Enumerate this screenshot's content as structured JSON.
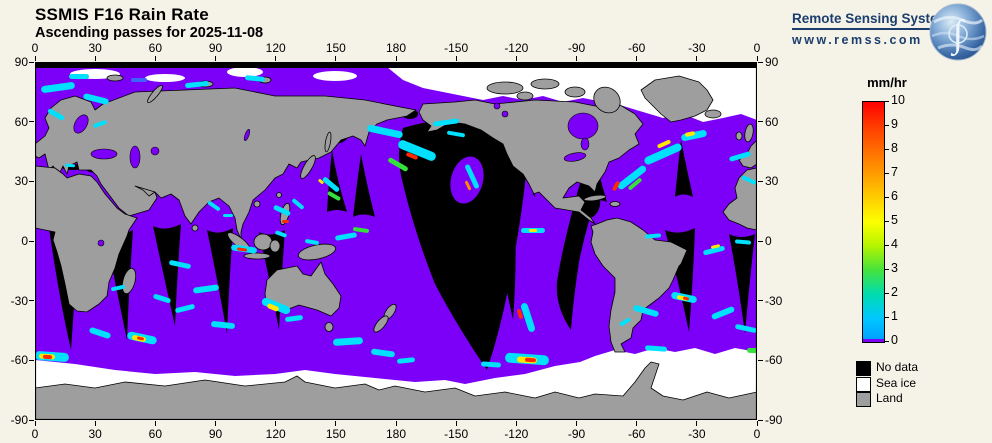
{
  "header": {
    "title": "SSMIS F16 Rain Rate",
    "subtitle": "Ascending passes for 2025-11-08"
  },
  "logo": {
    "name": "Remote Sensing Systems",
    "url": "www.remss.com"
  },
  "colorbar": {
    "title": "mm/hr",
    "ticks": [
      10,
      9,
      8,
      7,
      6,
      5,
      4,
      3,
      2,
      1,
      0
    ],
    "stops": [
      [
        10,
        "#FF0000"
      ],
      [
        9,
        "#FF3B00"
      ],
      [
        8,
        "#FF6C00"
      ],
      [
        7,
        "#FF9D00"
      ],
      [
        6,
        "#FFCE00"
      ],
      [
        5,
        "#FCFF00"
      ],
      [
        4,
        "#B4F400"
      ],
      [
        3,
        "#46E33C"
      ],
      [
        2,
        "#00DCAF"
      ],
      [
        1,
        "#00C8FF"
      ],
      [
        0,
        "#009CFF"
      ]
    ],
    "zero_color": "#7C00F8"
  },
  "legend": {
    "items": [
      {
        "label": "No data",
        "color": "#000000"
      },
      {
        "label": "Sea ice",
        "color": "#FFFFFF"
      },
      {
        "label": "Land",
        "color": "#9E9E9E"
      }
    ]
  },
  "axes": {
    "lon_labels": [
      "0",
      "30",
      "60",
      "90",
      "120",
      "150",
      "180",
      "-150",
      "-120",
      "-90",
      "-60",
      "-30",
      "0"
    ],
    "lat_labels": [
      "90",
      "60",
      "30",
      "0",
      "-30",
      "-60",
      "-90"
    ]
  },
  "colors": {
    "background": "#F5F2E8",
    "navy": "#1C3E6E",
    "ocean": "#7C00F8",
    "land": "#9E9E9E",
    "no_data": "#000000",
    "sea_ice": "#FFFFFF"
  },
  "map": {
    "palette": {
      "C": "#00E0FF",
      "G": "#35E23B",
      "Y": "#FFE800",
      "R": "#FF2A00",
      "O": "#FF8800",
      "B": "#3C64FF"
    },
    "rain_streaks": [
      [
        6,
        22,
        34,
        7,
        -8,
        "C"
      ],
      [
        48,
        34,
        26,
        6,
        14,
        "C"
      ],
      [
        34,
        12,
        20,
        5,
        0,
        "C"
      ],
      [
        150,
        20,
        24,
        5,
        -6,
        "C"
      ],
      [
        210,
        14,
        20,
        5,
        6,
        "C"
      ],
      [
        12,
        50,
        18,
        5,
        30,
        "C"
      ],
      [
        58,
        60,
        14,
        4,
        -20,
        "C"
      ],
      [
        96,
        16,
        16,
        4,
        0,
        "B"
      ],
      [
        332,
        66,
        36,
        7,
        12,
        "C"
      ],
      [
        362,
        84,
        40,
        9,
        22,
        "C"
      ],
      [
        371,
        92,
        12,
        4,
        22,
        "R"
      ],
      [
        352,
        100,
        22,
        5,
        30,
        "G"
      ],
      [
        398,
        58,
        26,
        5,
        -8,
        "C"
      ],
      [
        412,
        70,
        18,
        4,
        10,
        "C"
      ],
      [
        424,
        112,
        26,
        5,
        65,
        "C"
      ],
      [
        428,
        122,
        10,
        3,
        65,
        "O"
      ],
      [
        286,
        120,
        20,
        5,
        40,
        "C"
      ],
      [
        292,
        132,
        14,
        4,
        30,
        "G"
      ],
      [
        283,
        118,
        6,
        3,
        40,
        "Y"
      ],
      [
        238,
        146,
        18,
        5,
        25,
        "C"
      ],
      [
        247,
        158,
        7,
        3,
        0,
        "R"
      ],
      [
        256,
        140,
        14,
        4,
        40,
        "C"
      ],
      [
        172,
        142,
        14,
        4,
        35,
        "C"
      ],
      [
        188,
        152,
        10,
        3,
        0,
        "C"
      ],
      [
        300,
        172,
        22,
        5,
        -10,
        "C"
      ],
      [
        318,
        166,
        16,
        4,
        8,
        "G"
      ],
      [
        270,
        178,
        14,
        4,
        10,
        "C"
      ],
      [
        196,
        184,
        26,
        6,
        8,
        "C"
      ],
      [
        202,
        186,
        10,
        3,
        8,
        "R"
      ],
      [
        240,
        170,
        12,
        4,
        20,
        "C"
      ],
      [
        486,
        166,
        24,
        5,
        0,
        "C"
      ],
      [
        494,
        167,
        8,
        3,
        0,
        "Y"
      ],
      [
        610,
        172,
        16,
        4,
        -5,
        "C"
      ],
      [
        700,
        178,
        16,
        4,
        5,
        "C"
      ],
      [
        134,
        200,
        22,
        5,
        12,
        "C"
      ],
      [
        158,
        224,
        26,
        6,
        -8,
        "C"
      ],
      [
        118,
        234,
        18,
        5,
        18,
        "C"
      ],
      [
        76,
        224,
        14,
        4,
        -12,
        "C"
      ],
      [
        0,
        290,
        34,
        9,
        4,
        "C"
      ],
      [
        4,
        292,
        16,
        5,
        4,
        "Y"
      ],
      [
        8,
        293,
        9,
        4,
        4,
        "R"
      ],
      [
        54,
        268,
        22,
        6,
        18,
        "C"
      ],
      [
        92,
        272,
        30,
        8,
        12,
        "C"
      ],
      [
        97,
        274,
        14,
        5,
        12,
        "Y"
      ],
      [
        102,
        275,
        7,
        3,
        12,
        "R"
      ],
      [
        140,
        244,
        20,
        5,
        -14,
        "C"
      ],
      [
        176,
        260,
        24,
        6,
        6,
        "C"
      ],
      [
        226,
        240,
        30,
        8,
        22,
        "C"
      ],
      [
        232,
        243,
        12,
        5,
        22,
        "Y"
      ],
      [
        250,
        254,
        18,
        5,
        -8,
        "C"
      ],
      [
        298,
        276,
        30,
        7,
        -4,
        "C"
      ],
      [
        336,
        288,
        24,
        6,
        8,
        "C"
      ],
      [
        362,
        296,
        18,
        5,
        -6,
        "C"
      ],
      [
        446,
        300,
        20,
        5,
        4,
        "C"
      ],
      [
        470,
        292,
        44,
        10,
        4,
        "C"
      ],
      [
        482,
        295,
        20,
        6,
        4,
        "Y"
      ],
      [
        490,
        296,
        11,
        4,
        4,
        "R"
      ],
      [
        478,
        252,
        30,
        7,
        72,
        "C"
      ],
      [
        480,
        250,
        10,
        4,
        72,
        "R"
      ],
      [
        598,
        246,
        26,
        6,
        16,
        "C"
      ],
      [
        636,
        232,
        26,
        7,
        12,
        "C"
      ],
      [
        642,
        234,
        11,
        4,
        12,
        "Y"
      ],
      [
        648,
        235,
        6,
        3,
        12,
        "R"
      ],
      [
        610,
        284,
        22,
        5,
        4,
        "C"
      ],
      [
        584,
        258,
        12,
        4,
        -30,
        "C"
      ],
      [
        676,
        248,
        24,
        6,
        -22,
        "C"
      ],
      [
        700,
        264,
        22,
        5,
        12,
        "C"
      ],
      [
        712,
        286,
        14,
        5,
        2,
        "G"
      ],
      [
        668,
        186,
        22,
        5,
        -14,
        "C"
      ],
      [
        676,
        183,
        9,
        3,
        -14,
        "Y"
      ],
      [
        580,
        112,
        34,
        7,
        -38,
        "C"
      ],
      [
        608,
        88,
        40,
        8,
        -24,
        "C"
      ],
      [
        622,
        80,
        14,
        4,
        -24,
        "Y"
      ],
      [
        646,
        70,
        26,
        7,
        -12,
        "C"
      ],
      [
        650,
        70,
        10,
        4,
        -12,
        "Y"
      ],
      [
        576,
        122,
        10,
        4,
        -60,
        "R"
      ],
      [
        592,
        120,
        16,
        4,
        -40,
        "G"
      ],
      [
        694,
        92,
        22,
        5,
        -16,
        "C"
      ],
      [
        706,
        116,
        16,
        4,
        24,
        "C"
      ],
      [
        30,
        102,
        10,
        3,
        4,
        "C"
      ]
    ]
  }
}
